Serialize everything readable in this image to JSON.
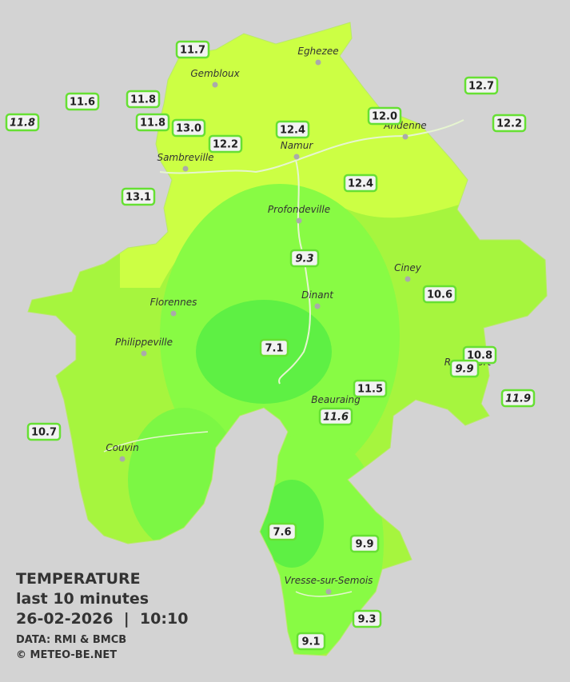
{
  "map": {
    "towns": [
      "Eghezee",
      "Gembloux",
      "Andenne",
      "Namur",
      "Sambreville",
      "Profondeville",
      "Ciney",
      "Dinant",
      "Florennes",
      "Philippeville",
      "Rochefort",
      "Beauraing",
      "Couvin",
      "Vresse-sur-Semois"
    ],
    "readings": [
      {
        "text": "11.7",
        "italic": false
      },
      {
        "text": "11.6",
        "italic": false
      },
      {
        "text": "11.8",
        "italic": false
      },
      {
        "text": "11.8",
        "italic": true
      },
      {
        "text": "11.8",
        "italic": false
      },
      {
        "text": "13.0",
        "italic": false
      },
      {
        "text": "12.2",
        "italic": false
      },
      {
        "text": "12.4",
        "italic": false
      },
      {
        "text": "12.0",
        "italic": false
      },
      {
        "text": "12.7",
        "italic": false
      },
      {
        "text": "12.2",
        "italic": false
      },
      {
        "text": "13.1",
        "italic": false
      },
      {
        "text": "12.4",
        "italic": false
      },
      {
        "text": "9.3",
        "italic": true
      },
      {
        "text": "10.6",
        "italic": false
      },
      {
        "text": "7.1",
        "italic": false
      },
      {
        "text": "10.8",
        "italic": false
      },
      {
        "text": "9.9",
        "italic": true
      },
      {
        "text": "11.9",
        "italic": true
      },
      {
        "text": "11.5",
        "italic": false
      },
      {
        "text": "11.6",
        "italic": true
      },
      {
        "text": "10.7",
        "italic": false
      },
      {
        "text": "7.6",
        "italic": false
      },
      {
        "text": "9.9",
        "italic": false
      },
      {
        "text": "9.3",
        "italic": false
      },
      {
        "text": "9.1",
        "italic": false
      }
    ]
  },
  "caption": {
    "title": "TEMPERATURE",
    "period": "last 10 minutes",
    "timestamp": "26-02-2026  |  10:10",
    "source": "DATA: RMI & BMCB",
    "copyright": "© METEO-BE.NET"
  }
}
